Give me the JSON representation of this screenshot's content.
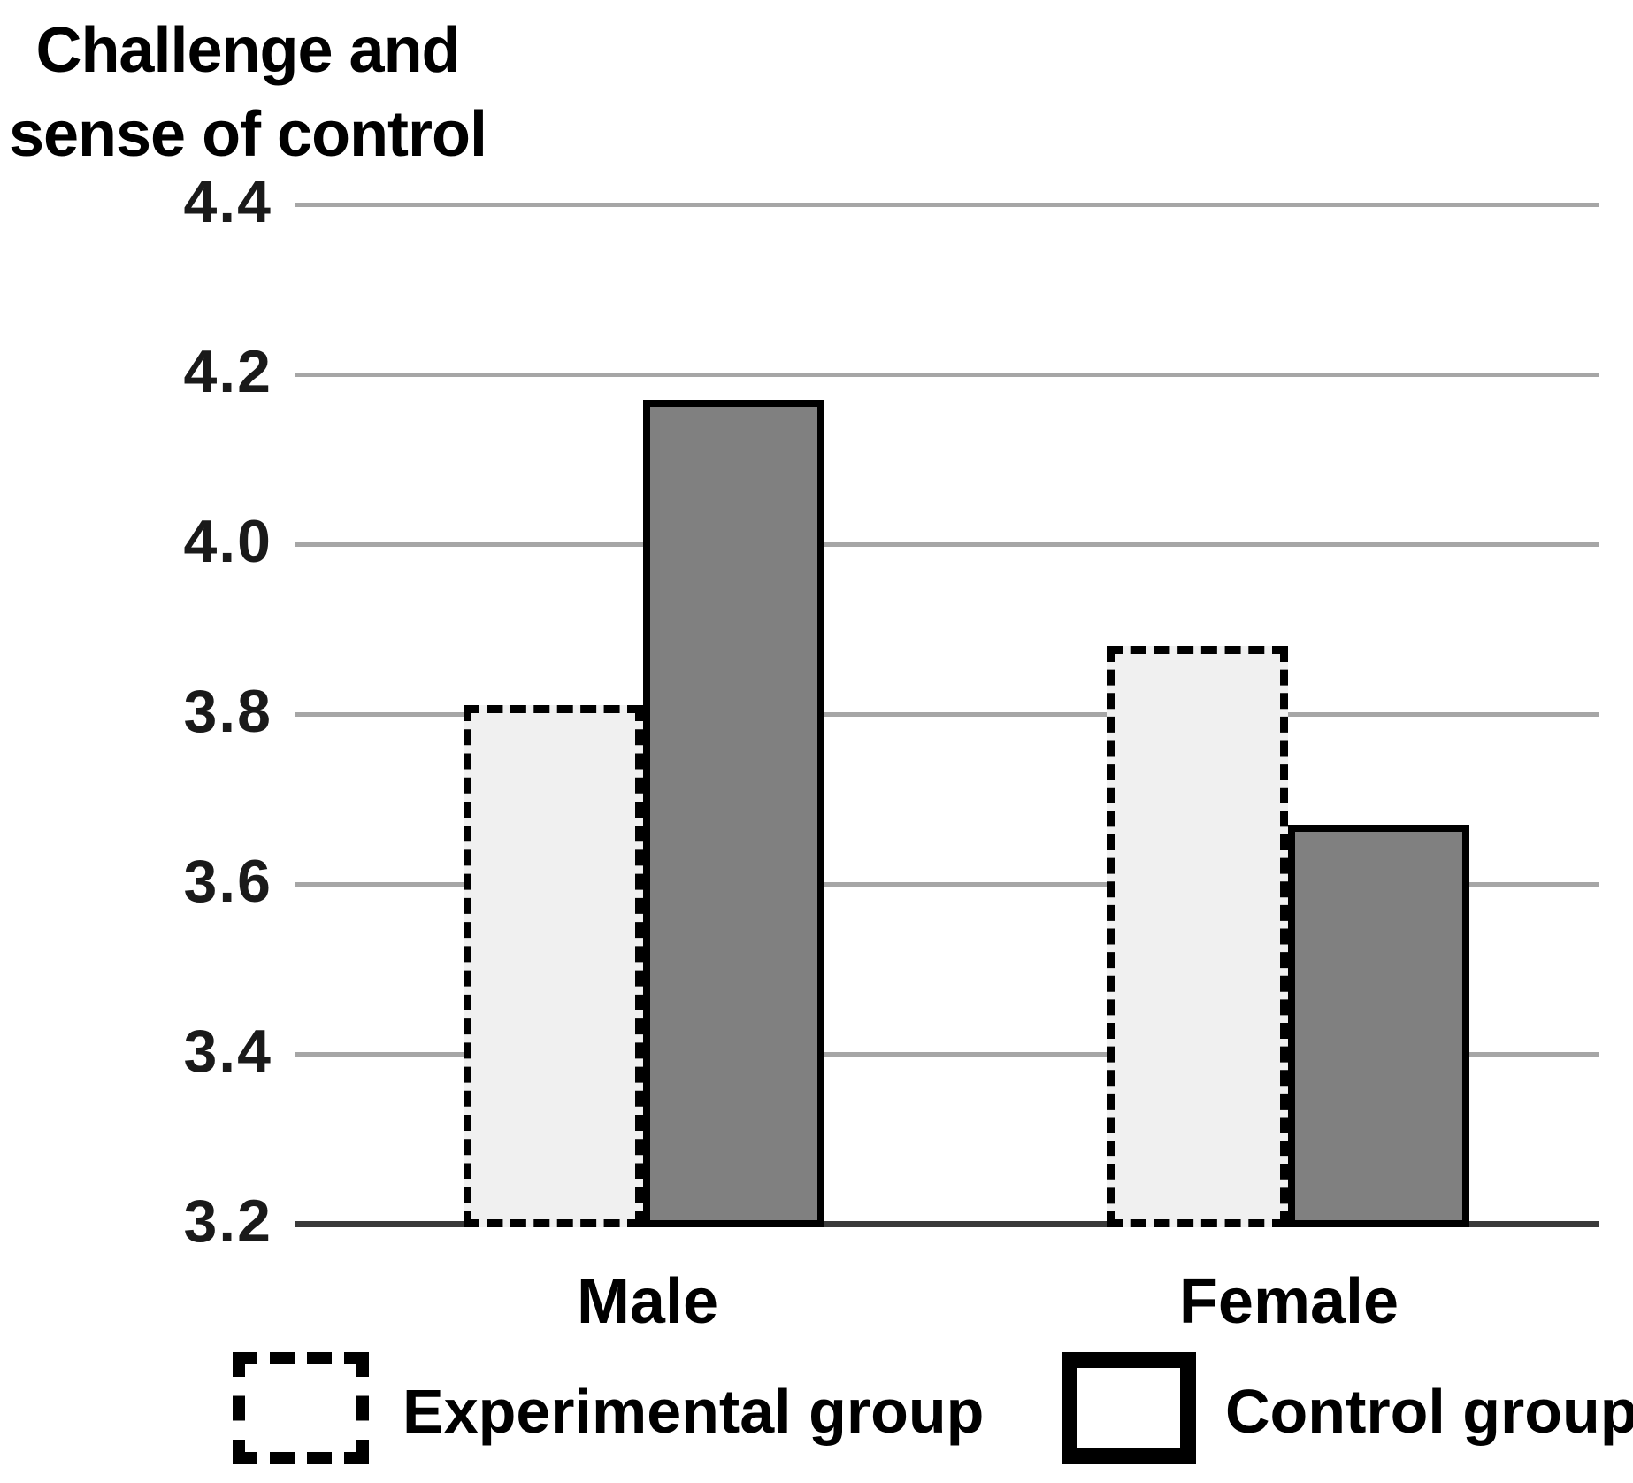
{
  "title": {
    "line1": "Challenge and",
    "line2": "sense of control"
  },
  "chart_data": {
    "type": "bar",
    "title": "Challenge and sense of control",
    "categories": [
      "Male",
      "Female"
    ],
    "series": [
      {
        "name": "Experimental group",
        "values": [
          3.81,
          3.88
        ]
      },
      {
        "name": "Control group",
        "values": [
          4.17,
          3.67
        ]
      }
    ],
    "xlabel": "",
    "ylabel": "Challenge and sense of control",
    "ylim": [
      3.2,
      4.4
    ],
    "ytick_step": 0.2,
    "yticks": [
      "4.4",
      "4.2",
      "4.0",
      "3.8",
      "3.6",
      "3.4",
      "3.2"
    ],
    "grid": "horizontal",
    "legend_position": "bottom"
  },
  "legend": {
    "items": [
      {
        "label": "Experimental group",
        "style": "dashed-light"
      },
      {
        "label": "Control group",
        "style": "solid-gray"
      }
    ]
  },
  "colors": {
    "experimental_fill": "#f0f0f0",
    "control_fill": "#808080",
    "bar_border": "#000000",
    "gridline": "#a6a6a6",
    "axis_line": "#3a3a3a",
    "tick_text": "#1a1a1a"
  }
}
